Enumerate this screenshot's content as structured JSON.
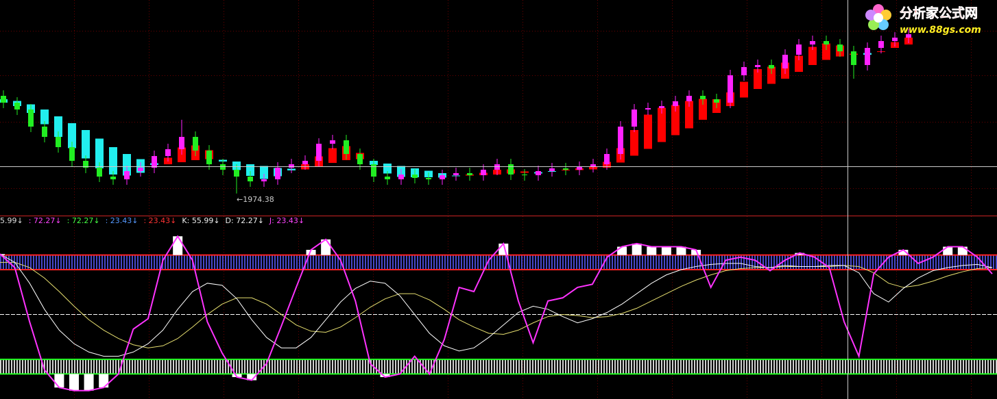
{
  "watermark": {
    "title": "分析家公式网",
    "url": "www.88gs.com"
  },
  "chart_data": [
    {
      "type": "candlestick",
      "ylim": [
        1920,
        2540
      ],
      "up_color": "#ff22ff",
      "down_color": "#22ee22",
      "open": [
        2260,
        2240,
        2220,
        2170,
        2140,
        2110,
        2070,
        2050,
        2024,
        2016,
        2040,
        2050,
        2084,
        2104,
        2140,
        2100,
        2060,
        2044,
        2024,
        2010,
        2016,
        2050,
        2060,
        2070,
        2120,
        2130,
        2090,
        2060,
        2024,
        2016,
        2030,
        2020,
        2016,
        2028,
        2034,
        2028,
        2044,
        2060,
        2030,
        2028,
        2040,
        2048,
        2044,
        2052,
        2060,
        2090,
        2170,
        2220,
        2224,
        2230,
        2244,
        2260,
        2250,
        2240,
        2320,
        2344,
        2350,
        2340,
        2380,
        2410,
        2420,
        2410,
        2390,
        2350,
        2400,
        2420,
        2430
      ],
      "high": [
        2276,
        2256,
        2236,
        2186,
        2156,
        2126,
        2086,
        2066,
        2040,
        2056,
        2066,
        2100,
        2120,
        2190,
        2156,
        2116,
        2076,
        2060,
        2040,
        2032,
        2066,
        2076,
        2086,
        2136,
        2146,
        2146,
        2106,
        2076,
        2040,
        2046,
        2046,
        2036,
        2044,
        2050,
        2050,
        2060,
        2076,
        2076,
        2046,
        2056,
        2064,
        2064,
        2068,
        2076,
        2106,
        2186,
        2236,
        2240,
        2246,
        2260,
        2276,
        2276,
        2266,
        2336,
        2360,
        2366,
        2366,
        2396,
        2426,
        2436,
        2436,
        2426,
        2406,
        2416,
        2436,
        2446,
        2456
      ],
      "low": [
        2224,
        2204,
        2154,
        2124,
        2094,
        2054,
        2034,
        2008,
        2000,
        2000,
        2024,
        2034,
        2068,
        2088,
        2084,
        2044,
        2028,
        1974.38,
        1994,
        1994,
        2000,
        2034,
        2044,
        2054,
        2104,
        2074,
        2044,
        2008,
        2000,
        2000,
        2004,
        2000,
        2000,
        2012,
        2012,
        2012,
        2028,
        2014,
        2012,
        2012,
        2024,
        2028,
        2028,
        2036,
        2044,
        2074,
        2154,
        2204,
        2208,
        2214,
        2228,
        2234,
        2224,
        2224,
        2304,
        2328,
        2324,
        2324,
        2364,
        2394,
        2394,
        2374,
        2310,
        2334,
        2384,
        2404,
        2414
      ],
      "close": [
        2240,
        2220,
        2170,
        2140,
        2110,
        2070,
        2050,
        2024,
        2016,
        2040,
        2050,
        2084,
        2104,
        2140,
        2100,
        2060,
        2044,
        2024,
        2010,
        2016,
        2050,
        2060,
        2070,
        2120,
        2130,
        2090,
        2060,
        2024,
        2016,
        2030,
        2020,
        2016,
        2028,
        2034,
        2028,
        2044,
        2060,
        2030,
        2028,
        2040,
        2048,
        2044,
        2052,
        2060,
        2090,
        2170,
        2220,
        2224,
        2230,
        2244,
        2260,
        2250,
        2240,
        2320,
        2344,
        2350,
        2340,
        2380,
        2410,
        2420,
        2410,
        2390,
        2350,
        2400,
        2420,
        2430,
        2440
      ],
      "ribbon": {
        "up_color": "#ff0000",
        "down_color": "#22eeee",
        "fast": [
          2240,
          2230,
          2210,
          2177,
          2140,
          2107,
          2077,
          2048,
          2030,
          2027,
          2035,
          2058,
          2079,
          2109,
          2115,
          2101,
          2068,
          2043,
          2026,
          2017,
          2025,
          2042,
          2060,
          2083,
          2107,
          2113,
          2093,
          2058,
          2033,
          2023,
          2022,
          2022,
          2021,
          2026,
          2030,
          2035,
          2044,
          2045,
          2039,
          2033,
          2039,
          2044,
          2048,
          2052,
          2067,
          2107,
          2160,
          2205,
          2225,
          2233,
          2245,
          2251,
          2250,
          2270,
          2301,
          2338,
          2345,
          2357,
          2377,
          2403,
          2413,
          2407,
          2383,
          2380,
          2390,
          2417,
          2430
        ],
        "slow": [
          2250,
          2245,
          2235,
          2220,
          2200,
          2180,
          2160,
          2135,
          2110,
          2090,
          2075,
          2063,
          2060,
          2066,
          2072,
          2075,
          2073,
          2068,
          2060,
          2055,
          2049,
          2047,
          2045,
          2053,
          2064,
          2072,
          2075,
          2070,
          2062,
          2055,
          2048,
          2041,
          2034,
          2027,
          2027,
          2028,
          2030,
          2033,
          2035,
          2037,
          2040,
          2042,
          2043,
          2045,
          2050,
          2065,
          2085,
          2105,
          2125,
          2145,
          2165,
          2190,
          2210,
          2230,
          2255,
          2280,
          2295,
          2310,
          2330,
          2350,
          2365,
          2375,
          2380,
          2385,
          2390,
          2400,
          2410
        ]
      },
      "annotation": "←1974.38"
    },
    {
      "type": "line",
      "ylim": [
        -31,
        135
      ],
      "legend": [
        {
          "text": "5.99↓",
          "color": "#dddddd"
        },
        {
          "text": ": 72.27↓",
          "color": "#ff44ff"
        },
        {
          "text": ": 72.27↓",
          "color": "#44ff44"
        },
        {
          "text": ": 23.43↓",
          "color": "#5599ff"
        },
        {
          "text": ": 23.43↓",
          "color": "#ff3333"
        },
        {
          "text": "K: 55.99↓",
          "color": "#eeeeee"
        },
        {
          "text": "D: 72.27↓",
          "color": "#eeeeee"
        },
        {
          "text": "J: 23.43↓",
          "color": "#ff44ff"
        }
      ],
      "bands": [
        {
          "range": [
            93,
            107
          ],
          "line_color": "#ff2222",
          "stripe_color": "#4848c8"
        },
        {
          "range": [
            -7,
            7
          ],
          "line_color": "#22ff22",
          "stripe_color": "#d0d0d0"
        }
      ],
      "midline": 50,
      "histogram_color": "#ffffff",
      "series": [
        {
          "color": "#ff33ff",
          "values": [
            108,
            95,
            43,
            -3,
            -20,
            -23,
            -23,
            -20,
            -7,
            36,
            46,
            102,
            125,
            102,
            43,
            13,
            -10,
            -13,
            3,
            39,
            76,
            112,
            122,
            102,
            63,
            3,
            -10,
            -7,
            10,
            -7,
            26,
            76,
            72,
            102,
            118,
            63,
            23,
            63,
            66,
            76,
            79,
            105,
            115,
            118,
            115,
            115,
            115,
            112,
            76,
            102,
            105,
            102,
            92,
            102,
            109,
            105,
            95,
            43,
            10,
            89,
            105,
            112,
            99,
            105,
            115,
            115,
            105,
            89
          ]
        },
        {
          "color": "#ffffff",
          "values": [
            108,
            100,
            80,
            55,
            35,
            22,
            14,
            10,
            10,
            14,
            22,
            35,
            55,
            72,
            80,
            78,
            65,
            45,
            28,
            18,
            18,
            28,
            45,
            62,
            75,
            82,
            80,
            68,
            50,
            32,
            20,
            15,
            18,
            28,
            40,
            52,
            58,
            55,
            48,
            42,
            46,
            52,
            60,
            70,
            80,
            88,
            93,
            96,
            98,
            99,
            99,
            96,
            95,
            97,
            96,
            96,
            97,
            97,
            90,
            70,
            62,
            75,
            85,
            92,
            95,
            97,
            98,
            95
          ]
        },
        {
          "color": "#e8e070",
          "values": [
            100,
            100,
            95,
            85,
            72,
            58,
            45,
            35,
            27,
            21,
            18,
            20,
            27,
            38,
            50,
            60,
            66,
            66,
            60,
            50,
            40,
            34,
            33,
            38,
            47,
            57,
            65,
            70,
            70,
            64,
            55,
            45,
            38,
            32,
            31,
            35,
            42,
            48,
            50,
            49,
            47,
            48,
            51,
            56,
            63,
            70,
            77,
            83,
            88,
            92,
            94,
            95,
            95,
            96,
            96,
            96,
            96,
            97,
            96,
            90,
            80,
            76,
            78,
            82,
            87,
            91,
            94,
            95
          ]
        }
      ]
    }
  ]
}
